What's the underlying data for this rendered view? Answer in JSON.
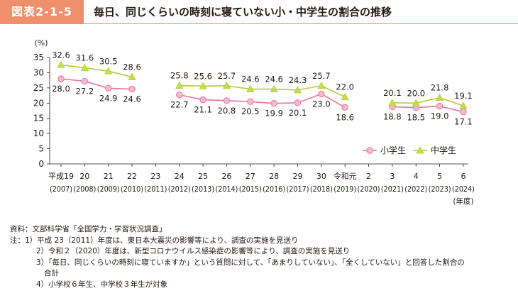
{
  "header": {
    "figure_label": "図表2-1-5",
    "title": "毎日、同じくらいの時刻に寝ていない小・中学生の割合の推移"
  },
  "chart_data": {
    "type": "line",
    "ylabel": "(%)",
    "ylim": [
      0,
      35
    ],
    "yticks": [
      0,
      5,
      10,
      15,
      20,
      25,
      30,
      35
    ],
    "categories": [
      [
        "平成19",
        "(2007)"
      ],
      [
        "20",
        "(2008)"
      ],
      [
        "21",
        "(2009)"
      ],
      [
        "22",
        "(2010)"
      ],
      [
        "23",
        "(2011)"
      ],
      [
        "24",
        "(2012)"
      ],
      [
        "25",
        "(2013)"
      ],
      [
        "26",
        "(2014)"
      ],
      [
        "27",
        "(2015)"
      ],
      [
        "28",
        "(2016)"
      ],
      [
        "29",
        "(2017)"
      ],
      [
        "30",
        "(2018)"
      ],
      [
        "令和元",
        "(2019)"
      ],
      [
        "2",
        "(2020)"
      ],
      [
        "3",
        "(2021)"
      ],
      [
        "4",
        "(2022)"
      ],
      [
        "5",
        "(2023)"
      ],
      [
        "6",
        "(2024)"
      ]
    ],
    "x_unit_label": "(年度)",
    "series": [
      {
        "name": "小学生",
        "marker": "circle",
        "color": "#e8749f",
        "fill": "#f6b9d0",
        "values": [
          28.0,
          27.2,
          24.9,
          24.6,
          null,
          22.7,
          21.1,
          20.8,
          20.5,
          19.9,
          20.1,
          23.0,
          18.6,
          null,
          18.8,
          18.5,
          19.0,
          17.1
        ],
        "labels": [
          "28.0",
          "27.2",
          "24.9",
          "24.6",
          null,
          "22.7",
          "21.1",
          "20.8",
          "20.5",
          "19.9",
          "20.1",
          "23.0",
          "18.6",
          null,
          "18.8",
          "18.5",
          "19.0",
          "17.1"
        ]
      },
      {
        "name": "中学生",
        "marker": "triangle",
        "color": "#b5cd3a",
        "fill": "#c9dc4a",
        "values": [
          32.6,
          31.6,
          30.5,
          28.6,
          null,
          25.8,
          25.6,
          25.7,
          24.6,
          24.6,
          24.3,
          25.7,
          22.0,
          null,
          20.1,
          20.0,
          21.8,
          19.1
        ],
        "labels": [
          "32.6",
          "31.6",
          "30.5",
          "28.6",
          null,
          "25.8",
          "25.6",
          "25.7",
          "24.6",
          "24.6",
          "24.3",
          "25.7",
          "22.0",
          null,
          "20.1",
          "20.0",
          "21.8",
          "19.1"
        ]
      }
    ],
    "legend_position": "bottom-right"
  },
  "notes": {
    "source": "資料：文部科学省「全国学力・学習状況調査」",
    "n1": "注：1）平成 23（2011）年度は、東日本大震災の影響等により、調査の実施を見送り",
    "n2": "2）令和２（2020）年度は、新型コロナウイルス感染症の影響等により、調査の実施を見送り",
    "n3a": "3）「毎日、同じくらいの時刻に寝ていますか」という質問に対して、「あまりしていない」、「全くしていない」と回答した割合の",
    "n3b": "合計",
    "n4": "4）小学校６年生、中学校３年生が対象"
  }
}
